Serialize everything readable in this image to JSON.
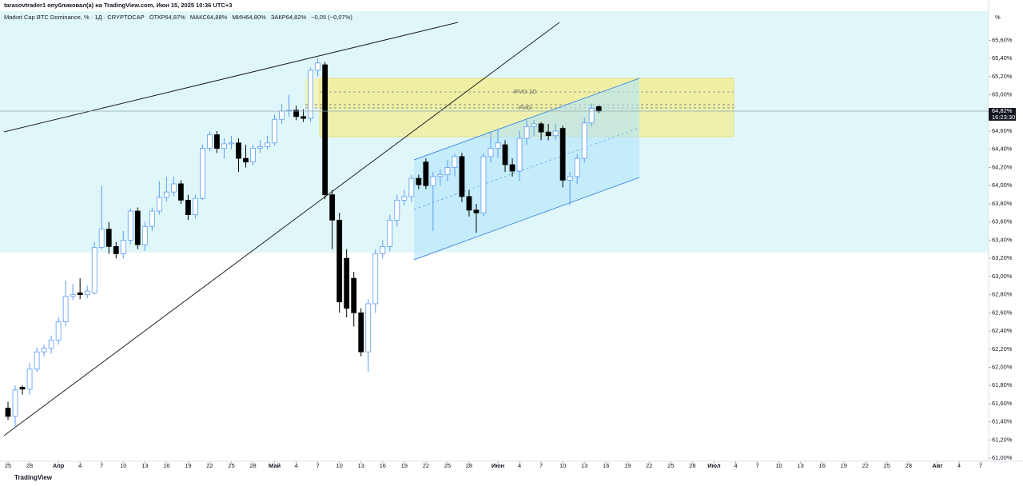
{
  "header": "tarasovtrader1 опубликовал(а) на TradingView.com, Июн 15, 2025 10:36 UTC+3",
  "footer": "TradingView",
  "chart_data": {
    "type": "candlestick",
    "legend": [
      "Market Cap BTC Dominance, % · 1Д · CRYPTOCAP",
      "ОТКР64,87%",
      "МАКС64,88%",
      "МИН64,80%",
      "ЗАКР64,82%",
      "−0,05 (−0,07%)"
    ],
    "y_unit": "%",
    "annotations": [
      "iFVG 1D",
      "FVG"
    ],
    "last_price": {
      "value": 64.82,
      "label": "64,82%",
      "countdown": "16:23:30"
    },
    "up_color": "#5b9cf6",
    "down_color": "#000000",
    "x": [
      "2025-03-25",
      "2025-03-26",
      "2025-03-27",
      "2025-03-28",
      "2025-03-29",
      "2025-03-30",
      "2025-03-31",
      "2025-04-01",
      "2025-04-02",
      "2025-04-03",
      "2025-04-04",
      "2025-04-05",
      "2025-04-06",
      "2025-04-07",
      "2025-04-08",
      "2025-04-09",
      "2025-04-10",
      "2025-04-11",
      "2025-04-12",
      "2025-04-13",
      "2025-04-14",
      "2025-04-15",
      "2025-04-16",
      "2025-04-17",
      "2025-04-18",
      "2025-04-19",
      "2025-04-20",
      "2025-04-21",
      "2025-04-22",
      "2025-04-23",
      "2025-04-24",
      "2025-04-25",
      "2025-04-26",
      "2025-04-27",
      "2025-04-28",
      "2025-04-29",
      "2025-04-30",
      "2025-05-01",
      "2025-05-02",
      "2025-05-03",
      "2025-05-04",
      "2025-05-05",
      "2025-05-06",
      "2025-05-07",
      "2025-05-08",
      "2025-05-09",
      "2025-05-10",
      "2025-05-11",
      "2025-05-12",
      "2025-05-13",
      "2025-05-14",
      "2025-05-15",
      "2025-05-16",
      "2025-05-17",
      "2025-05-18",
      "2025-05-19",
      "2025-05-20",
      "2025-05-21",
      "2025-05-22",
      "2025-05-23",
      "2025-05-24",
      "2025-05-25",
      "2025-05-26",
      "2025-05-27",
      "2025-05-28",
      "2025-05-29",
      "2025-05-30",
      "2025-05-31",
      "2025-06-01",
      "2025-06-02",
      "2025-06-03",
      "2025-06-04",
      "2025-06-05",
      "2025-06-06",
      "2025-06-07",
      "2025-06-08",
      "2025-06-09",
      "2025-06-10",
      "2025-06-11",
      "2025-06-12",
      "2025-06-13",
      "2025-06-14",
      "2025-06-15"
    ],
    "open": [
      61.55,
      61.46,
      61.78,
      61.76,
      61.98,
      62.17,
      62.21,
      62.3,
      62.5,
      62.78,
      62.82,
      62.8,
      62.82,
      63.32,
      63.52,
      63.33,
      63.25,
      63.4,
      63.72,
      63.35,
      63.55,
      63.72,
      63.87,
      63.93,
      64.02,
      63.84,
      63.68,
      63.86,
      64.41,
      64.56,
      64.41,
      64.46,
      64.47,
      64.3,
      64.26,
      64.41,
      64.43,
      64.47,
      64.73,
      64.82,
      64.83,
      64.76,
      64.74,
      65.27,
      65.33,
      63.9,
      63.62,
      63.2,
      62.98,
      62.6,
      62.17,
      62.7,
      63.25,
      63.33,
      63.62,
      63.84,
      63.88,
      64.08,
      64.26,
      64.0,
      64.1,
      64.12,
      64.2,
      64.32,
      63.88,
      63.73,
      63.7,
      64.32,
      64.41,
      64.45,
      64.23,
      64.16,
      64.52,
      64.65,
      64.68,
      64.59,
      64.55,
      64.63,
      64.06,
      64.1,
      64.3,
      64.69,
      64.87
    ],
    "high": [
      61.62,
      61.8,
      61.8,
      62.05,
      62.22,
      62.25,
      62.35,
      62.55,
      62.95,
      62.92,
      62.98,
      62.9,
      63.38,
      64.0,
      63.6,
      63.38,
      63.5,
      63.75,
      63.76,
      63.6,
      63.76,
      64.05,
      64.1,
      64.1,
      64.06,
      63.9,
      63.9,
      64.45,
      64.6,
      64.6,
      64.52,
      64.55,
      64.52,
      64.45,
      64.45,
      64.5,
      64.55,
      64.78,
      64.9,
      65.0,
      64.88,
      64.84,
      65.3,
      65.4,
      65.36,
      63.95,
      63.7,
      63.3,
      63.05,
      62.65,
      62.75,
      63.3,
      63.4,
      63.68,
      63.9,
      63.95,
      64.12,
      64.12,
      64.3,
      64.15,
      64.18,
      64.28,
      64.35,
      64.36,
      63.95,
      63.8,
      64.36,
      64.6,
      64.62,
      64.5,
      64.3,
      64.6,
      64.72,
      64.72,
      64.7,
      64.68,
      64.68,
      64.66,
      64.15,
      64.35,
      64.75,
      64.9,
      64.88
    ],
    "low": [
      61.42,
      61.35,
      61.7,
      61.7,
      61.95,
      62.12,
      62.15,
      62.25,
      62.45,
      62.74,
      62.75,
      62.76,
      62.8,
      63.3,
      63.25,
      63.2,
      63.2,
      63.35,
      63.3,
      63.28,
      63.5,
      63.68,
      63.82,
      63.88,
      63.8,
      63.62,
      63.64,
      63.84,
      64.38,
      64.36,
      64.3,
      64.4,
      64.15,
      64.2,
      64.22,
      64.36,
      64.4,
      64.44,
      64.68,
      64.76,
      64.72,
      64.7,
      64.7,
      65.2,
      63.85,
      63.3,
      62.6,
      62.55,
      62.45,
      62.12,
      61.95,
      62.6,
      63.2,
      63.28,
      63.55,
      63.78,
      63.82,
      63.96,
      63.96,
      63.5,
      64.0,
      64.05,
      64.1,
      63.82,
      63.66,
      63.48,
      63.66,
      64.25,
      64.3,
      64.15,
      64.1,
      64.05,
      64.45,
      64.55,
      64.5,
      64.5,
      64.5,
      63.98,
      63.78,
      64.02,
      64.25,
      64.65,
      64.8
    ],
    "close": [
      61.46,
      61.75,
      61.76,
      61.98,
      62.17,
      62.21,
      62.3,
      62.5,
      62.78,
      62.8,
      62.8,
      62.84,
      63.32,
      63.52,
      63.33,
      63.25,
      63.4,
      63.72,
      63.35,
      63.55,
      63.72,
      63.87,
      63.93,
      64.02,
      63.84,
      63.68,
      63.86,
      64.41,
      64.56,
      64.41,
      64.46,
      64.47,
      64.3,
      64.26,
      64.41,
      64.43,
      64.47,
      64.73,
      64.82,
      64.83,
      64.76,
      64.74,
      65.27,
      65.35,
      63.9,
      63.62,
      62.72,
      62.65,
      62.6,
      62.17,
      62.7,
      63.25,
      63.33,
      63.62,
      63.84,
      63.88,
      64.08,
      64.01,
      64.0,
      64.1,
      64.12,
      64.2,
      64.32,
      63.88,
      63.73,
      63.7,
      64.32,
      64.41,
      64.47,
      64.23,
      64.16,
      64.52,
      64.65,
      64.68,
      64.59,
      64.55,
      64.6,
      64.06,
      64.1,
      64.3,
      64.69,
      64.85,
      64.82
    ],
    "xlim": [
      "2025-03-24",
      "2025-08-08"
    ],
    "xticks": [
      {
        "value": "2025-03-25",
        "label": "25"
      },
      {
        "value": "2025-03-28",
        "label": "28"
      },
      {
        "value": "2025-04-01",
        "label": "Апр"
      },
      {
        "value": "2025-04-04",
        "label": "4"
      },
      {
        "value": "2025-04-07",
        "label": "7"
      },
      {
        "value": "2025-04-10",
        "label": "10"
      },
      {
        "value": "2025-04-13",
        "label": "13"
      },
      {
        "value": "2025-04-16",
        "label": "16"
      },
      {
        "value": "2025-04-19",
        "label": "19"
      },
      {
        "value": "2025-04-22",
        "label": "22"
      },
      {
        "value": "2025-04-25",
        "label": "25"
      },
      {
        "value": "2025-04-28",
        "label": "28"
      },
      {
        "value": "2025-05-01",
        "label": "Май"
      },
      {
        "value": "2025-05-04",
        "label": "4"
      },
      {
        "value": "2025-05-07",
        "label": "7"
      },
      {
        "value": "2025-05-10",
        "label": "10"
      },
      {
        "value": "2025-05-13",
        "label": "13"
      },
      {
        "value": "2025-05-16",
        "label": "16"
      },
      {
        "value": "2025-05-19",
        "label": "19"
      },
      {
        "value": "2025-05-22",
        "label": "22"
      },
      {
        "value": "2025-05-25",
        "label": "25"
      },
      {
        "value": "2025-05-28",
        "label": "28"
      },
      {
        "value": "2025-06-01",
        "label": "Июн"
      },
      {
        "value": "2025-06-04",
        "label": "4"
      },
      {
        "value": "2025-06-07",
        "label": "7"
      },
      {
        "value": "2025-06-10",
        "label": "10"
      },
      {
        "value": "2025-06-13",
        "label": "13"
      },
      {
        "value": "2025-06-16",
        "label": "16"
      },
      {
        "value": "2025-06-19",
        "label": "19"
      },
      {
        "value": "2025-06-22",
        "label": "22"
      },
      {
        "value": "2025-06-25",
        "label": "25"
      },
      {
        "value": "2025-06-28",
        "label": "28"
      },
      {
        "value": "2025-07-01",
        "label": "Июл"
      },
      {
        "value": "2025-07-04",
        "label": "4"
      },
      {
        "value": "2025-07-07",
        "label": "7"
      },
      {
        "value": "2025-07-10",
        "label": "10"
      },
      {
        "value": "2025-07-13",
        "label": "13"
      },
      {
        "value": "2025-07-16",
        "label": "16"
      },
      {
        "value": "2025-07-19",
        "label": "19"
      },
      {
        "value": "2025-07-22",
        "label": "22"
      },
      {
        "value": "2025-07-25",
        "label": "25"
      },
      {
        "value": "2025-07-28",
        "label": "28"
      },
      {
        "value": "2025-08-01",
        "label": "Авг"
      },
      {
        "value": "2025-08-04",
        "label": "4"
      },
      {
        "value": "2025-08-07",
        "label": "7"
      }
    ],
    "ylim": [
      60.94,
      65.92
    ],
    "yticks": [
      {
        "value": 65.6,
        "label": "65,60%"
      },
      {
        "value": 65.4,
        "label": "65,40%"
      },
      {
        "value": 65.2,
        "label": "65,20%"
      },
      {
        "value": 65.0,
        "label": "65,00%"
      },
      {
        "value": 64.8,
        "label": "64,80%"
      },
      {
        "value": 64.6,
        "label": "64,60%"
      },
      {
        "value": 64.4,
        "label": "64,40%"
      },
      {
        "value": 64.2,
        "label": "64,20%"
      },
      {
        "value": 64.0,
        "label": "64,00%"
      },
      {
        "value": 63.8,
        "label": "63,80%"
      },
      {
        "value": 63.6,
        "label": "63,60%"
      },
      {
        "value": 63.4,
        "label": "63,40%"
      },
      {
        "value": 63.2,
        "label": "63,20%"
      },
      {
        "value": 63.0,
        "label": "63,00%"
      },
      {
        "value": 62.8,
        "label": "62,80%"
      },
      {
        "value": 62.6,
        "label": "62,60%"
      },
      {
        "value": 62.4,
        "label": "62,40%"
      },
      {
        "value": 62.2,
        "label": "62,20%"
      },
      {
        "value": 62.0,
        "label": "62,00%"
      },
      {
        "value": 61.8,
        "label": "61,80%"
      },
      {
        "value": 61.6,
        "label": "61,60%"
      },
      {
        "value": 61.4,
        "label": "61,40%"
      },
      {
        "value": 61.2,
        "label": "61,20%"
      },
      {
        "value": 61.0,
        "label": "61,00%"
      }
    ]
  }
}
